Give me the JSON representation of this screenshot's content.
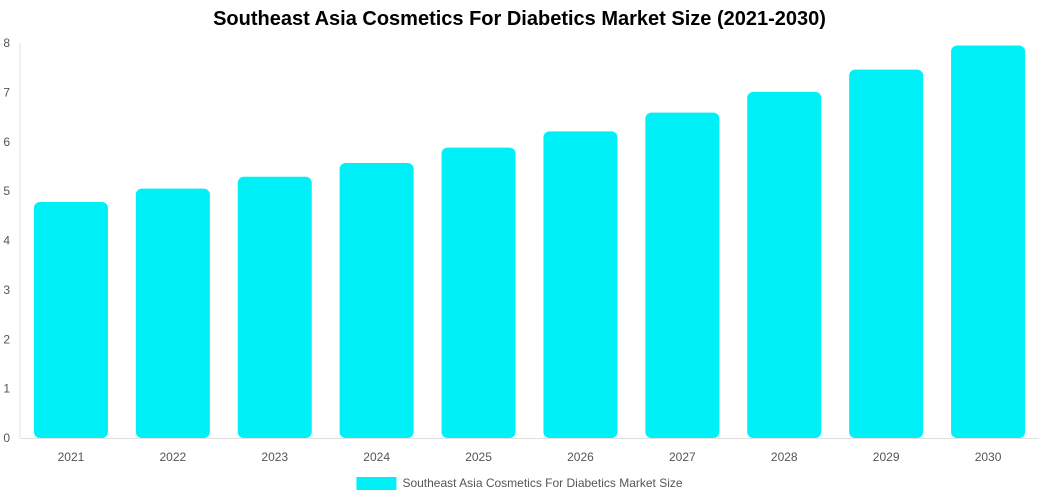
{
  "chart_data": {
    "type": "bar",
    "title": "Southeast Asia Cosmetics For Diabetics Market Size (2021-2030)",
    "categories": [
      "2021",
      "2022",
      "2023",
      "2024",
      "2025",
      "2026",
      "2027",
      "2028",
      "2029",
      "2030"
    ],
    "series": [
      {
        "name": "Southeast Asia Cosmetics For Diabetics Market Size",
        "color": "#00F0F8",
        "values": [
          4.78,
          5.05,
          5.29,
          5.57,
          5.88,
          6.21,
          6.59,
          7.01,
          7.46,
          7.95
        ]
      }
    ],
    "ylim": [
      0,
      8
    ],
    "yticks": [
      "0",
      "1",
      "2",
      "3",
      "4",
      "5",
      "6",
      "7",
      "8"
    ],
    "xlabel": "",
    "ylabel": "",
    "grid": false,
    "legend_position": "bottom-center"
  }
}
